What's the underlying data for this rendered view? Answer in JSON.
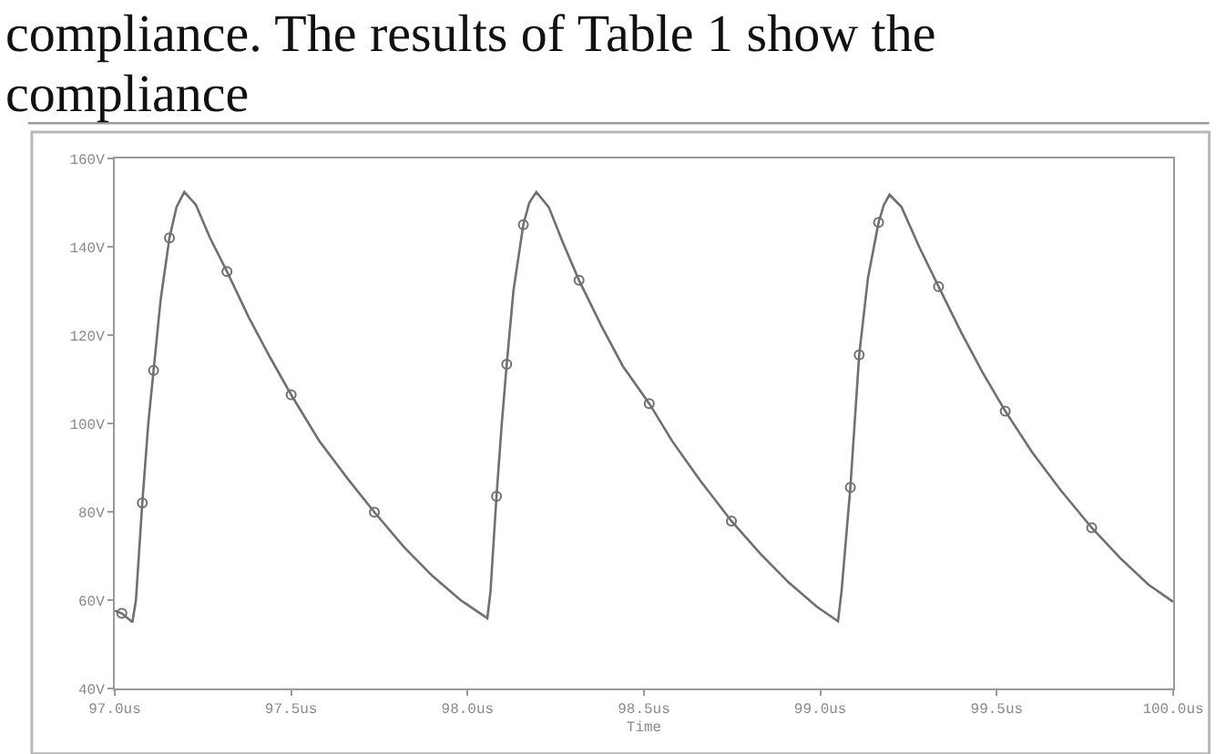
{
  "chart_data": {
    "type": "line",
    "xlabel": "Time",
    "annotations": [
      "compliance. The results of Table 1 show the",
      "compliance"
    ],
    "xlim": [
      97,
      100
    ],
    "xticks": [
      {
        "value": 97,
        "label": "97.0us"
      },
      {
        "value": 97.5,
        "label": "97.5us"
      },
      {
        "value": 98,
        "label": "98.0us"
      },
      {
        "value": 98.5,
        "label": "98.5us"
      },
      {
        "value": 99,
        "label": "99.0us"
      },
      {
        "value": 99.5,
        "label": "99.5us"
      },
      {
        "value": 100,
        "label": "100.0us"
      }
    ],
    "ylim": [
      40,
      160
    ],
    "yticks": [
      {
        "value": 40,
        "label": "40V"
      },
      {
        "value": 60,
        "label": "60V"
      },
      {
        "value": 80,
        "label": "80V"
      },
      {
        "value": 100,
        "label": "100V"
      },
      {
        "value": 120,
        "label": "120V"
      },
      {
        "value": 140,
        "label": "140V"
      },
      {
        "value": 160,
        "label": "160V"
      }
    ],
    "grid": false,
    "marker": "circle",
    "series": [
      {
        "color": "#707070",
        "marker": "none",
        "x": [
          97.0,
          97.02,
          97.05,
          97.06,
          97.078,
          97.095,
          97.11,
          97.13,
          97.155,
          97.175,
          97.197,
          97.23,
          97.27,
          97.318,
          97.38,
          97.44,
          97.5,
          97.58,
          97.66,
          97.736,
          97.82,
          97.9,
          97.98,
          98.056,
          98.065,
          98.082,
          98.097,
          98.111,
          98.13,
          98.158,
          98.175,
          98.195,
          98.23,
          98.27,
          98.316,
          98.38,
          98.44,
          98.515,
          98.58,
          98.66,
          98.748,
          98.83,
          98.91,
          98.99,
          99.05,
          99.06,
          99.085,
          99.11,
          99.135,
          99.165,
          99.18,
          99.196,
          99.23,
          99.28,
          99.335,
          99.4,
          99.46,
          99.524,
          99.6,
          99.68,
          99.769,
          99.85,
          99.93,
          100.0
        ],
        "values": [
          57.6,
          57,
          55,
          60,
          82,
          100,
          112,
          128,
          142,
          149,
          152.4,
          149.5,
          142,
          134.4,
          124,
          115,
          106.5,
          96,
          87.5,
          79.9,
          72,
          65.5,
          60,
          55.9,
          62,
          83.5,
          100,
          113.4,
          130,
          145,
          150,
          152.4,
          149,
          141,
          132.4,
          122,
          113,
          104.5,
          96,
          87,
          77.9,
          70.5,
          64,
          58.5,
          55.2,
          62,
          85.5,
          115.5,
          133,
          145.5,
          149.5,
          151.8,
          149,
          140,
          131,
          120.5,
          111.5,
          102.8,
          93.5,
          85,
          76.4,
          69.5,
          63.5,
          59.6
        ]
      },
      {
        "type": "scatter",
        "color": "#707070",
        "x": [
          97.02,
          97.078,
          97.11,
          97.155,
          97.318,
          97.5,
          97.736,
          98.082,
          98.111,
          98.158,
          98.316,
          98.515,
          98.748,
          99.085,
          99.11,
          99.165,
          99.335,
          99.524,
          99.769
        ],
        "values": [
          57,
          82,
          112,
          142,
          134.4,
          106.5,
          79.9,
          83.5,
          113.4,
          145,
          132.4,
          104.5,
          77.9,
          85.5,
          115.5,
          145.5,
          131,
          102.8,
          76.4
        ]
      }
    ]
  }
}
